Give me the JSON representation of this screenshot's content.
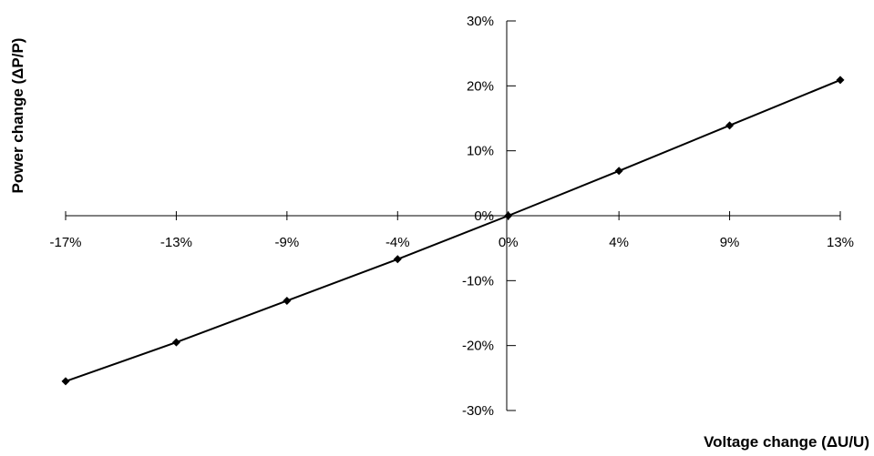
{
  "chart_data": {
    "type": "line",
    "xlabel": "Voltage change (ΔU/U)",
    "ylabel": "Power change (ΔP/P)",
    "x_ticks": [
      "-17%",
      "-13%",
      "-9%",
      "-4%",
      "0%",
      "4%",
      "9%",
      "13%"
    ],
    "y_ticks": [
      "30%",
      "20%",
      "10%",
      "0%",
      "-10%",
      "-20%",
      "-30%"
    ],
    "y_tick_values": [
      30,
      20,
      10,
      0,
      -10,
      -20,
      -30
    ],
    "ylim": [
      -30,
      30
    ],
    "series": [
      {
        "values": [
          -25.5,
          -19.5,
          -13.1,
          -6.7,
          0,
          6.9,
          13.9,
          20.9
        ]
      }
    ],
    "grid": false,
    "legend": "none",
    "line_color": "#000000",
    "marker": "diamond"
  }
}
